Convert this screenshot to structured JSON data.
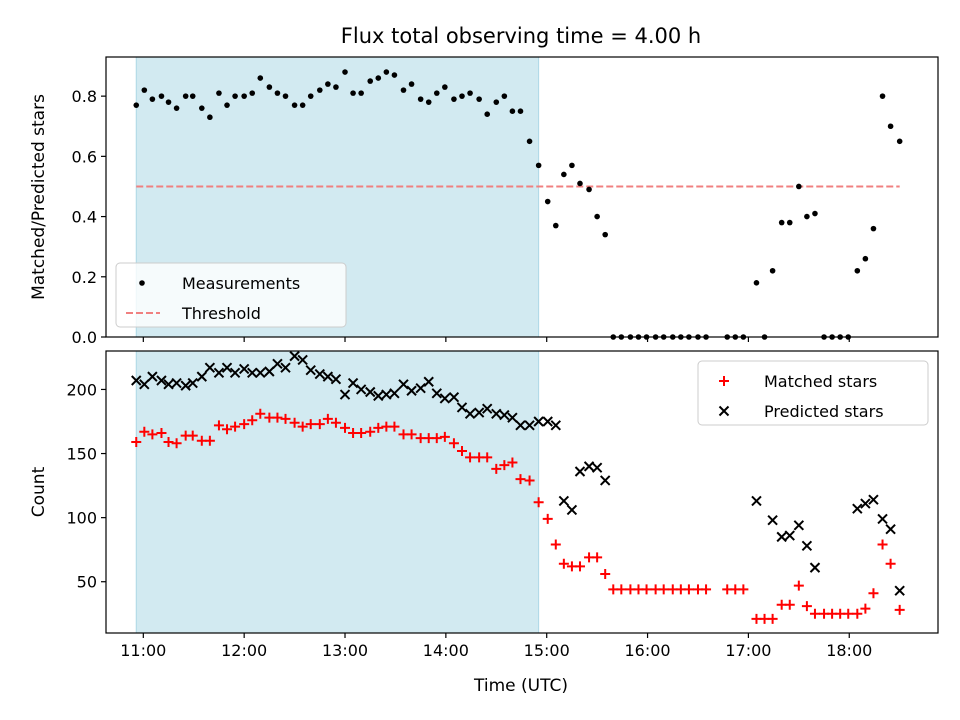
{
  "chart_data": {
    "type": "scatter",
    "title": "Flux total observing time = 4.00 h",
    "xlabel": "Time (UTC)",
    "xlim_hours": [
      10.63,
      18.88
    ],
    "xticks": [
      11,
      12,
      13,
      14,
      15,
      16,
      17,
      18
    ],
    "xtick_labels": [
      "11:00",
      "12:00",
      "13:00",
      "14:00",
      "15:00",
      "16:00",
      "17:00",
      "18:00"
    ],
    "shaded_span_hours": [
      10.93,
      14.92
    ],
    "shade_color": "#add8e6",
    "panels": [
      {
        "name": "ratio",
        "ylabel": "Matched/Predicted stars",
        "ylim": [
          0,
          0.93
        ],
        "yticks": [
          0.0,
          0.2,
          0.4,
          0.6,
          0.8
        ],
        "ytick_labels": [
          "0.0",
          "0.2",
          "0.4",
          "0.6",
          "0.8"
        ],
        "legend": {
          "position": "lower-left",
          "entries": [
            "Measurements",
            "Threshold"
          ]
        },
        "threshold": {
          "name": "Threshold",
          "value": 0.5,
          "x_range_hours": [
            10.93,
            18.5
          ],
          "color": "#f08080",
          "style": "dashed"
        },
        "series": [
          {
            "name": "Measurements",
            "marker": "dot",
            "color": "#000000",
            "x": [
              10.93,
              11.01,
              11.09,
              11.18,
              11.25,
              11.33,
              11.42,
              11.49,
              11.58,
              11.66,
              11.75,
              11.83,
              11.91,
              12.0,
              12.08,
              12.16,
              12.25,
              12.33,
              12.41,
              12.5,
              12.58,
              12.66,
              12.75,
              12.83,
              12.91,
              13.0,
              13.08,
              13.16,
              13.25,
              13.33,
              13.41,
              13.49,
              13.58,
              13.66,
              13.75,
              13.83,
              13.91,
              13.99,
              14.08,
              14.16,
              14.24,
              14.33,
              14.41,
              14.5,
              14.58,
              14.66,
              14.74,
              14.83,
              14.92,
              15.01,
              15.09,
              15.17,
              15.25,
              15.33,
              15.42,
              15.5,
              15.58,
              15.66,
              15.74,
              15.83,
              15.91,
              15.99,
              16.08,
              16.16,
              16.25,
              16.33,
              16.41,
              16.5,
              16.58,
              16.79,
              16.87,
              16.95,
              17.08,
              17.16,
              17.24,
              17.33,
              17.41,
              17.5,
              17.58,
              17.66,
              17.75,
              17.83,
              17.91,
              17.99,
              18.08,
              18.16,
              18.24,
              18.33,
              18.41,
              18.5
            ],
            "y": [
              0.77,
              0.82,
              0.79,
              0.8,
              0.78,
              0.76,
              0.8,
              0.8,
              0.76,
              0.73,
              0.81,
              0.77,
              0.8,
              0.8,
              0.81,
              0.86,
              0.83,
              0.81,
              0.8,
              0.77,
              0.77,
              0.8,
              0.82,
              0.84,
              0.83,
              0.88,
              0.81,
              0.81,
              0.85,
              0.86,
              0.88,
              0.87,
              0.82,
              0.84,
              0.79,
              0.78,
              0.81,
              0.83,
              0.79,
              0.8,
              0.81,
              0.79,
              0.74,
              0.78,
              0.8,
              0.75,
              0.75,
              0.65,
              0.57,
              0.45,
              0.37,
              0.54,
              0.57,
              0.51,
              0.49,
              0.4,
              0.34,
              0.0,
              0.0,
              0.0,
              0.0,
              0.0,
              0.0,
              0.0,
              0.0,
              0.0,
              0.0,
              0.0,
              0.0,
              0.0,
              0.0,
              0.0,
              0.18,
              0.0,
              0.22,
              0.38,
              0.38,
              0.5,
              0.4,
              0.41,
              0.0,
              0.0,
              0.0,
              0.0,
              0.22,
              0.26,
              0.36,
              0.8,
              0.7,
              0.65
            ]
          }
        ]
      },
      {
        "name": "counts",
        "ylabel": "Count",
        "ylim": [
          10,
          230
        ],
        "yticks": [
          50,
          100,
          150,
          200
        ],
        "ytick_labels": [
          "50",
          "100",
          "150",
          "200"
        ],
        "legend": {
          "position": "top-right",
          "entries": [
            "Matched stars",
            "Predicted stars"
          ]
        },
        "series": [
          {
            "name": "Matched stars",
            "marker": "plus",
            "color": "#ff0000",
            "x": [
              10.93,
              11.01,
              11.09,
              11.18,
              11.25,
              11.33,
              11.42,
              11.49,
              11.58,
              11.66,
              11.75,
              11.83,
              11.91,
              12.0,
              12.08,
              12.16,
              12.25,
              12.33,
              12.41,
              12.5,
              12.58,
              12.66,
              12.75,
              12.83,
              12.91,
              13.0,
              13.08,
              13.16,
              13.25,
              13.33,
              13.41,
              13.49,
              13.58,
              13.66,
              13.75,
              13.83,
              13.91,
              13.99,
              14.08,
              14.16,
              14.24,
              14.33,
              14.41,
              14.5,
              14.58,
              14.66,
              14.74,
              14.83,
              14.92,
              15.01,
              15.09,
              15.17,
              15.25,
              15.33,
              15.42,
              15.5,
              15.58,
              15.66,
              15.74,
              15.83,
              15.91,
              15.99,
              16.08,
              16.16,
              16.25,
              16.33,
              16.41,
              16.5,
              16.58,
              16.79,
              16.87,
              16.95,
              17.08,
              17.16,
              17.24,
              17.33,
              17.41,
              17.5,
              17.58,
              17.66,
              17.75,
              17.83,
              17.91,
              17.99,
              18.08,
              18.16,
              18.24,
              18.33,
              18.41,
              18.5
            ],
            "y": [
              159,
              167,
              165,
              166,
              159,
              158,
              164,
              164,
              160,
              160,
              172,
              169,
              171,
              173,
              176,
              181,
              178,
              178,
              177,
              174,
              171,
              173,
              173,
              177,
              174,
              170,
              166,
              166,
              167,
              170,
              171,
              171,
              165,
              165,
              162,
              162,
              162,
              163,
              158,
              152,
              147,
              147,
              147,
              138,
              141,
              143,
              130,
              129,
              112,
              99,
              79,
              64,
              62,
              62,
              69,
              69,
              56,
              44,
              44,
              44,
              44,
              44,
              44,
              44,
              44,
              44,
              44,
              44,
              44,
              44,
              44,
              44,
              21,
              21,
              21,
              32,
              32,
              47,
              31,
              25,
              25,
              25,
              25,
              25,
              25,
              29,
              41,
              79,
              64,
              28
            ]
          },
          {
            "name": "Predicted stars",
            "marker": "x",
            "color": "#000000",
            "x": [
              10.93,
              11.01,
              11.09,
              11.18,
              11.25,
              11.33,
              11.42,
              11.49,
              11.58,
              11.66,
              11.75,
              11.83,
              11.91,
              12.0,
              12.08,
              12.16,
              12.25,
              12.33,
              12.41,
              12.5,
              12.58,
              12.66,
              12.75,
              12.83,
              12.91,
              13.0,
              13.08,
              13.16,
              13.25,
              13.33,
              13.41,
              13.49,
              13.58,
              13.66,
              13.75,
              13.83,
              13.91,
              13.99,
              14.08,
              14.16,
              14.24,
              14.33,
              14.41,
              14.5,
              14.58,
              14.66,
              14.74,
              14.83,
              14.92,
              15.01,
              15.09,
              15.17,
              15.25,
              15.33,
              15.42,
              15.5,
              15.58,
              17.08,
              17.24,
              17.33,
              17.41,
              17.5,
              17.58,
              17.66,
              18.08,
              18.16,
              18.24,
              18.33,
              18.41,
              18.5
            ],
            "y": [
              207,
              204,
              210,
              207,
              204,
              205,
              203,
              205,
              210,
              217,
              213,
              217,
              213,
              216,
              213,
              213,
              214,
              220,
              217,
              226,
              223,
              215,
              212,
              210,
              208,
              196,
              205,
              200,
              198,
              195,
              196,
              197,
              204,
              199,
              201,
              206,
              197,
              193,
              194,
              186,
              181,
              182,
              185,
              181,
              180,
              178,
              172,
              172,
              175,
              175,
              172,
              113,
              106,
              136,
              140,
              139,
              129,
              113,
              98,
              85,
              86,
              94,
              78,
              61,
              107,
              111,
              114,
              99,
              91,
              43
            ]
          }
        ]
      }
    ]
  }
}
